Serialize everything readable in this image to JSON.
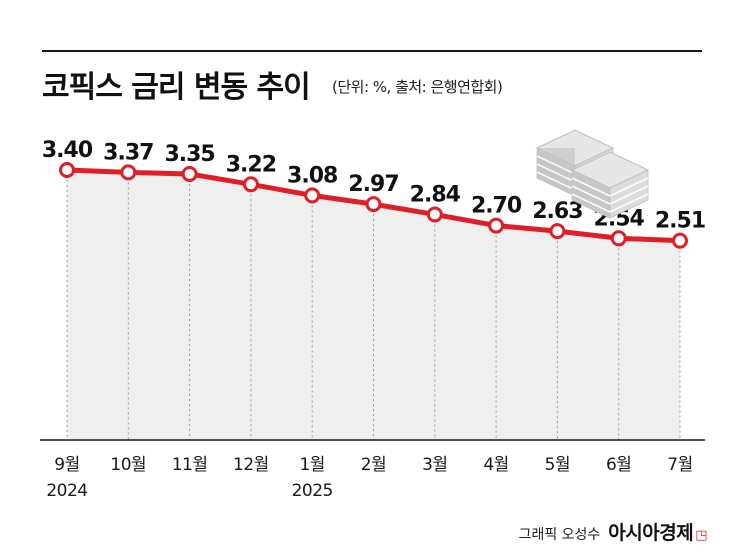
{
  "header": {
    "title": "코픽스 금리 변동 추이",
    "unit_note": "(단위: %, 출처: 은행연합회)"
  },
  "footer": {
    "credit": "그래픽 오성수",
    "brand": "아시아경제"
  },
  "colors": {
    "line": "#e01e25",
    "area": "#efefef",
    "marker_fill": "#ffffff",
    "text": "#111111"
  },
  "icons": [
    "stacked-papers-icon"
  ],
  "chart_data": {
    "type": "area",
    "title": "코픽스 금리 변동 추이",
    "xlabel": "",
    "ylabel": "",
    "ylim": [
      0,
      3.6
    ],
    "grid": false,
    "categories": [
      "9월",
      "10월",
      "11월",
      "12월",
      "1월",
      "2월",
      "3월",
      "4월",
      "5월",
      "6월",
      "7월"
    ],
    "year_labels": [
      "2024",
      "",
      "",
      "",
      "2025",
      "",
      "",
      "",
      "",
      "",
      ""
    ],
    "value_labels": [
      "3.40",
      "3.37",
      "3.35",
      "3.22",
      "3.08",
      "2.97",
      "2.84",
      "2.70",
      "2.63",
      "2.54",
      "2.51"
    ],
    "series": [
      {
        "values": [
          3.4,
          3.37,
          3.35,
          3.22,
          3.08,
          2.97,
          2.84,
          2.7,
          2.63,
          2.54,
          2.51
        ]
      }
    ]
  }
}
